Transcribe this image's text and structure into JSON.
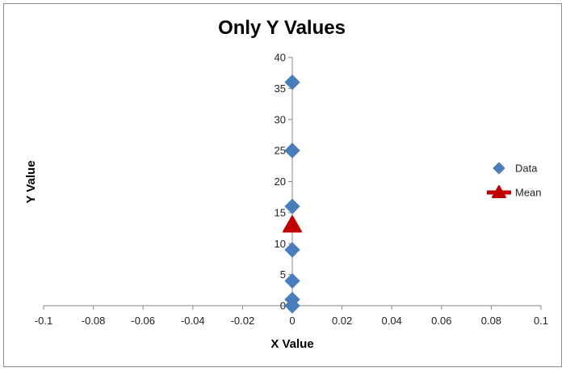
{
  "chart_data": {
    "type": "scatter",
    "title": "Only Y Values",
    "xlabel": "X Value",
    "ylabel": "Y Value",
    "xlim": [
      -0.1,
      0.1
    ],
    "ylim": [
      0,
      40
    ],
    "x_ticks": [
      "-0.1",
      "-0.08",
      "-0.06",
      "-0.04",
      "-0.02",
      "0",
      "0.02",
      "0.04",
      "0.06",
      "0.08",
      "0.1"
    ],
    "y_ticks": [
      "0",
      "5",
      "10",
      "15",
      "20",
      "25",
      "30",
      "35",
      "40"
    ],
    "grid": false,
    "legend_position": "right",
    "series": [
      {
        "name": "Data",
        "marker": "diamond",
        "color": "#4a7ebb",
        "points": [
          {
            "x": 0,
            "y": 0
          },
          {
            "x": 0,
            "y": 1
          },
          {
            "x": 0,
            "y": 4
          },
          {
            "x": 0,
            "y": 9
          },
          {
            "x": 0,
            "y": 16
          },
          {
            "x": 0,
            "y": 25
          },
          {
            "x": 0,
            "y": 36
          }
        ]
      },
      {
        "name": "Mean",
        "marker": "triangle",
        "color": "#c00000",
        "points": [
          {
            "x": 0,
            "y": 13
          }
        ]
      }
    ]
  }
}
